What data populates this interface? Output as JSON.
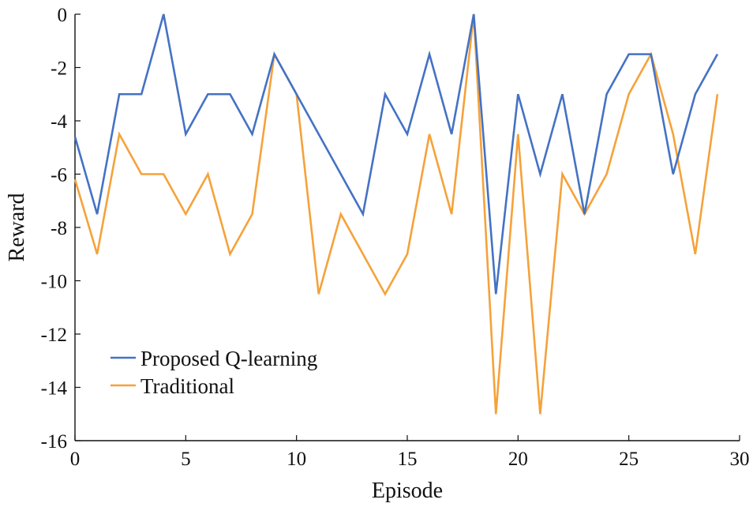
{
  "chart_data": {
    "type": "line",
    "title": "",
    "xlabel": "Episode",
    "ylabel": "Reward",
    "xlim": [
      0,
      30
    ],
    "ylim": [
      -16,
      0
    ],
    "xticks": [
      0,
      5,
      10,
      15,
      20,
      25,
      30
    ],
    "xtick_labels": [
      "0",
      "5",
      "10",
      "15",
      "20",
      "25",
      "30"
    ],
    "yticks": [
      0,
      -2,
      -4,
      -6,
      -8,
      -10,
      -12,
      -14,
      -16
    ],
    "ytick_labels": [
      "0",
      "-2",
      "-4",
      "-6",
      "-8",
      "-10",
      "-12",
      "-14",
      "-16"
    ],
    "grid": false,
    "legend": "lower-left",
    "x": [
      0,
      1,
      2,
      3,
      4,
      5,
      6,
      7,
      8,
      9,
      10,
      11,
      12,
      13,
      14,
      15,
      16,
      17,
      18,
      19,
      20,
      21,
      22,
      23,
      24,
      25,
      26,
      27,
      28,
      29
    ],
    "series": [
      {
        "name": "Proposed Q-learning",
        "color": "#4472c4",
        "values": [
          -4.6,
          -7.5,
          -3,
          -3,
          0,
          -4.5,
          -3,
          -3,
          -4.5,
          -1.5,
          -3,
          -4.5,
          -6,
          -7.5,
          -3,
          -4.5,
          -1.5,
          -4.5,
          0,
          -10.5,
          -3,
          -6,
          -3,
          -7.5,
          -3,
          -1.5,
          -1.5,
          -6,
          -3,
          -1.5
        ]
      },
      {
        "name": "Traditional",
        "color": "#f5a23a",
        "values": [
          -6.2,
          -9,
          -4.5,
          -6,
          -6,
          -7.5,
          -6,
          -9,
          -7.5,
          -1.5,
          -3,
          -10.5,
          -7.5,
          -9,
          -10.5,
          -9,
          -4.5,
          -7.5,
          0,
          -15,
          -4.5,
          -15,
          -6,
          -7.5,
          -6,
          -3,
          -1.5,
          -4.5,
          -9,
          -3
        ]
      }
    ]
  }
}
